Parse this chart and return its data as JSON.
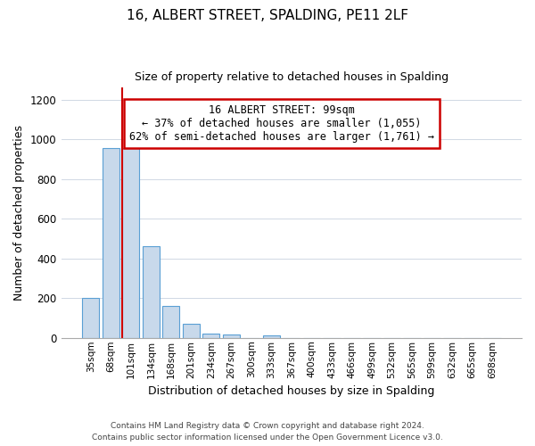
{
  "title": "16, ALBERT STREET, SPALDING, PE11 2LF",
  "subtitle": "Size of property relative to detached houses in Spalding",
  "xlabel": "Distribution of detached houses by size in Spalding",
  "ylabel": "Number of detached properties",
  "bin_labels": [
    "35sqm",
    "68sqm",
    "101sqm",
    "134sqm",
    "168sqm",
    "201sqm",
    "234sqm",
    "267sqm",
    "300sqm",
    "333sqm",
    "367sqm",
    "400sqm",
    "433sqm",
    "466sqm",
    "499sqm",
    "532sqm",
    "565sqm",
    "599sqm",
    "632sqm",
    "665sqm",
    "698sqm"
  ],
  "bar_heights": [
    200,
    955,
    955,
    460,
    160,
    72,
    22,
    18,
    0,
    12,
    0,
    0,
    0,
    0,
    0,
    0,
    0,
    0,
    0,
    0,
    0
  ],
  "bar_color": "#c8d9eb",
  "bar_edge_color": "#5a9fd4",
  "highlight_bar_index": 2,
  "highlight_line_color": "#cc0000",
  "annotation_text": "16 ALBERT STREET: 99sqm\n← 37% of detached houses are smaller (1,055)\n62% of semi-detached houses are larger (1,761) →",
  "annotation_box_color": "#ffffff",
  "annotation_box_edgecolor": "#cc0000",
  "ylim": [
    0,
    1260
  ],
  "yticks": [
    0,
    200,
    400,
    600,
    800,
    1000,
    1200
  ],
  "footer_line1": "Contains HM Land Registry data © Crown copyright and database right 2024.",
  "footer_line2": "Contains public sector information licensed under the Open Government Licence v3.0."
}
